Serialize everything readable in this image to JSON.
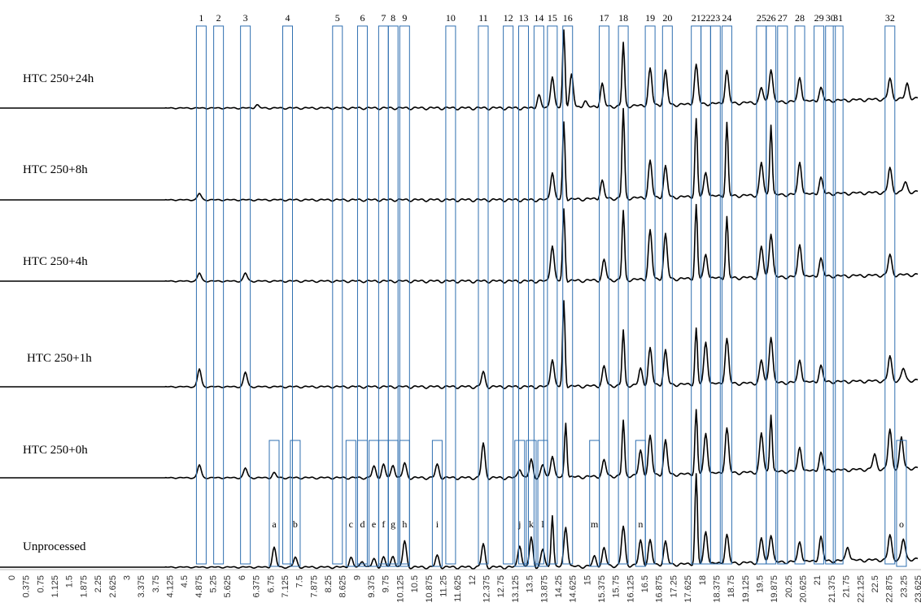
{
  "chart_data": {
    "type": "line",
    "series": [
      {
        "name": "HTC 250+24h"
      },
      {
        "name": "HTC 250+8h"
      },
      {
        "name": "HTC 250+4h"
      },
      {
        "name": "HTC 250+1h"
      },
      {
        "name": "HTC 250+0h"
      },
      {
        "name": "Unprocessed"
      }
    ],
    "x_ticks": [
      "0",
      "0.375",
      "0.75",
      "1.125",
      "1.5",
      "1.875",
      "2.25",
      "2.625",
      "3",
      "3.375",
      "3.75",
      "4.125",
      "4.5",
      "4.875",
      "5.25",
      "5.625",
      "6",
      "6.375",
      "6.75",
      "7.125",
      "7.5",
      "7.875",
      "8.25",
      "8.625",
      "9",
      "9.375",
      "9.75",
      "10.125",
      "10.5",
      "10.875",
      "11.25",
      "11.625",
      "12",
      "12.375",
      "12.75",
      "13.125",
      "13.5",
      "13.875",
      "14.25",
      "14.625",
      "15",
      "15.375",
      "15.75",
      "16.125",
      "16.5",
      "16.875",
      "17.25",
      "17.625",
      "18",
      "18.375",
      "18.75",
      "19.125",
      "19.5",
      "19.875",
      "20.25",
      "20.625",
      "21",
      "21.375",
      "21.75",
      "22.125",
      "22.5",
      "22.875",
      "23.25",
      "23.625"
    ],
    "xlim": [
      0,
      23.625
    ],
    "numbered_peaks": [
      {
        "label": "1",
        "x": 4.95
      },
      {
        "label": "2",
        "x": 5.4
      },
      {
        "label": "3",
        "x": 6.1
      },
      {
        "label": "4",
        "x": 7.2
      },
      {
        "label": "5",
        "x": 8.5
      },
      {
        "label": "6",
        "x": 9.15
      },
      {
        "label": "7",
        "x": 9.7
      },
      {
        "label": "8",
        "x": 9.95
      },
      {
        "label": "9",
        "x": 10.25
      },
      {
        "label": "10",
        "x": 11.45
      },
      {
        "label": "11",
        "x": 12.3
      },
      {
        "label": "12",
        "x": 12.95
      },
      {
        "label": "13",
        "x": 13.35
      },
      {
        "label": "14",
        "x": 13.75
      },
      {
        "label": "15",
        "x": 14.1
      },
      {
        "label": "16",
        "x": 14.5
      },
      {
        "label": "17",
        "x": 15.45
      },
      {
        "label": "18",
        "x": 15.95
      },
      {
        "label": "19",
        "x": 16.65
      },
      {
        "label": "20",
        "x": 17.1
      },
      {
        "label": "21",
        "x": 17.85
      },
      {
        "label": "22",
        "x": 18.1
      },
      {
        "label": "23",
        "x": 18.35
      },
      {
        "label": "24",
        "x": 18.65
      },
      {
        "label": "25",
        "x": 19.55
      },
      {
        "label": "26",
        "x": 19.8
      },
      {
        "label": "27",
        "x": 20.1
      },
      {
        "label": "28",
        "x": 20.55
      },
      {
        "label": "29",
        "x": 21.05
      },
      {
        "label": "30",
        "x": 21.35
      },
      {
        "label": "31",
        "x": 21.55
      },
      {
        "label": "32",
        "x": 22.9
      }
    ],
    "lettered_peaks": [
      {
        "label": "a",
        "x": 6.85
      },
      {
        "label": "b",
        "x": 7.4
      },
      {
        "label": "c",
        "x": 8.85
      },
      {
        "label": "d",
        "x": 9.15
      },
      {
        "label": "e",
        "x": 9.45
      },
      {
        "label": "f",
        "x": 9.7
      },
      {
        "label": "g",
        "x": 9.95
      },
      {
        "label": "h",
        "x": 10.25
      },
      {
        "label": "i",
        "x": 11.1
      },
      {
        "label": "j",
        "x": 13.25
      },
      {
        "label": "k",
        "x": 13.55
      },
      {
        "label": "l",
        "x": 13.85
      },
      {
        "label": "m",
        "x": 15.2
      },
      {
        "label": "n",
        "x": 16.4
      },
      {
        "label": "o",
        "x": 23.2
      }
    ]
  }
}
